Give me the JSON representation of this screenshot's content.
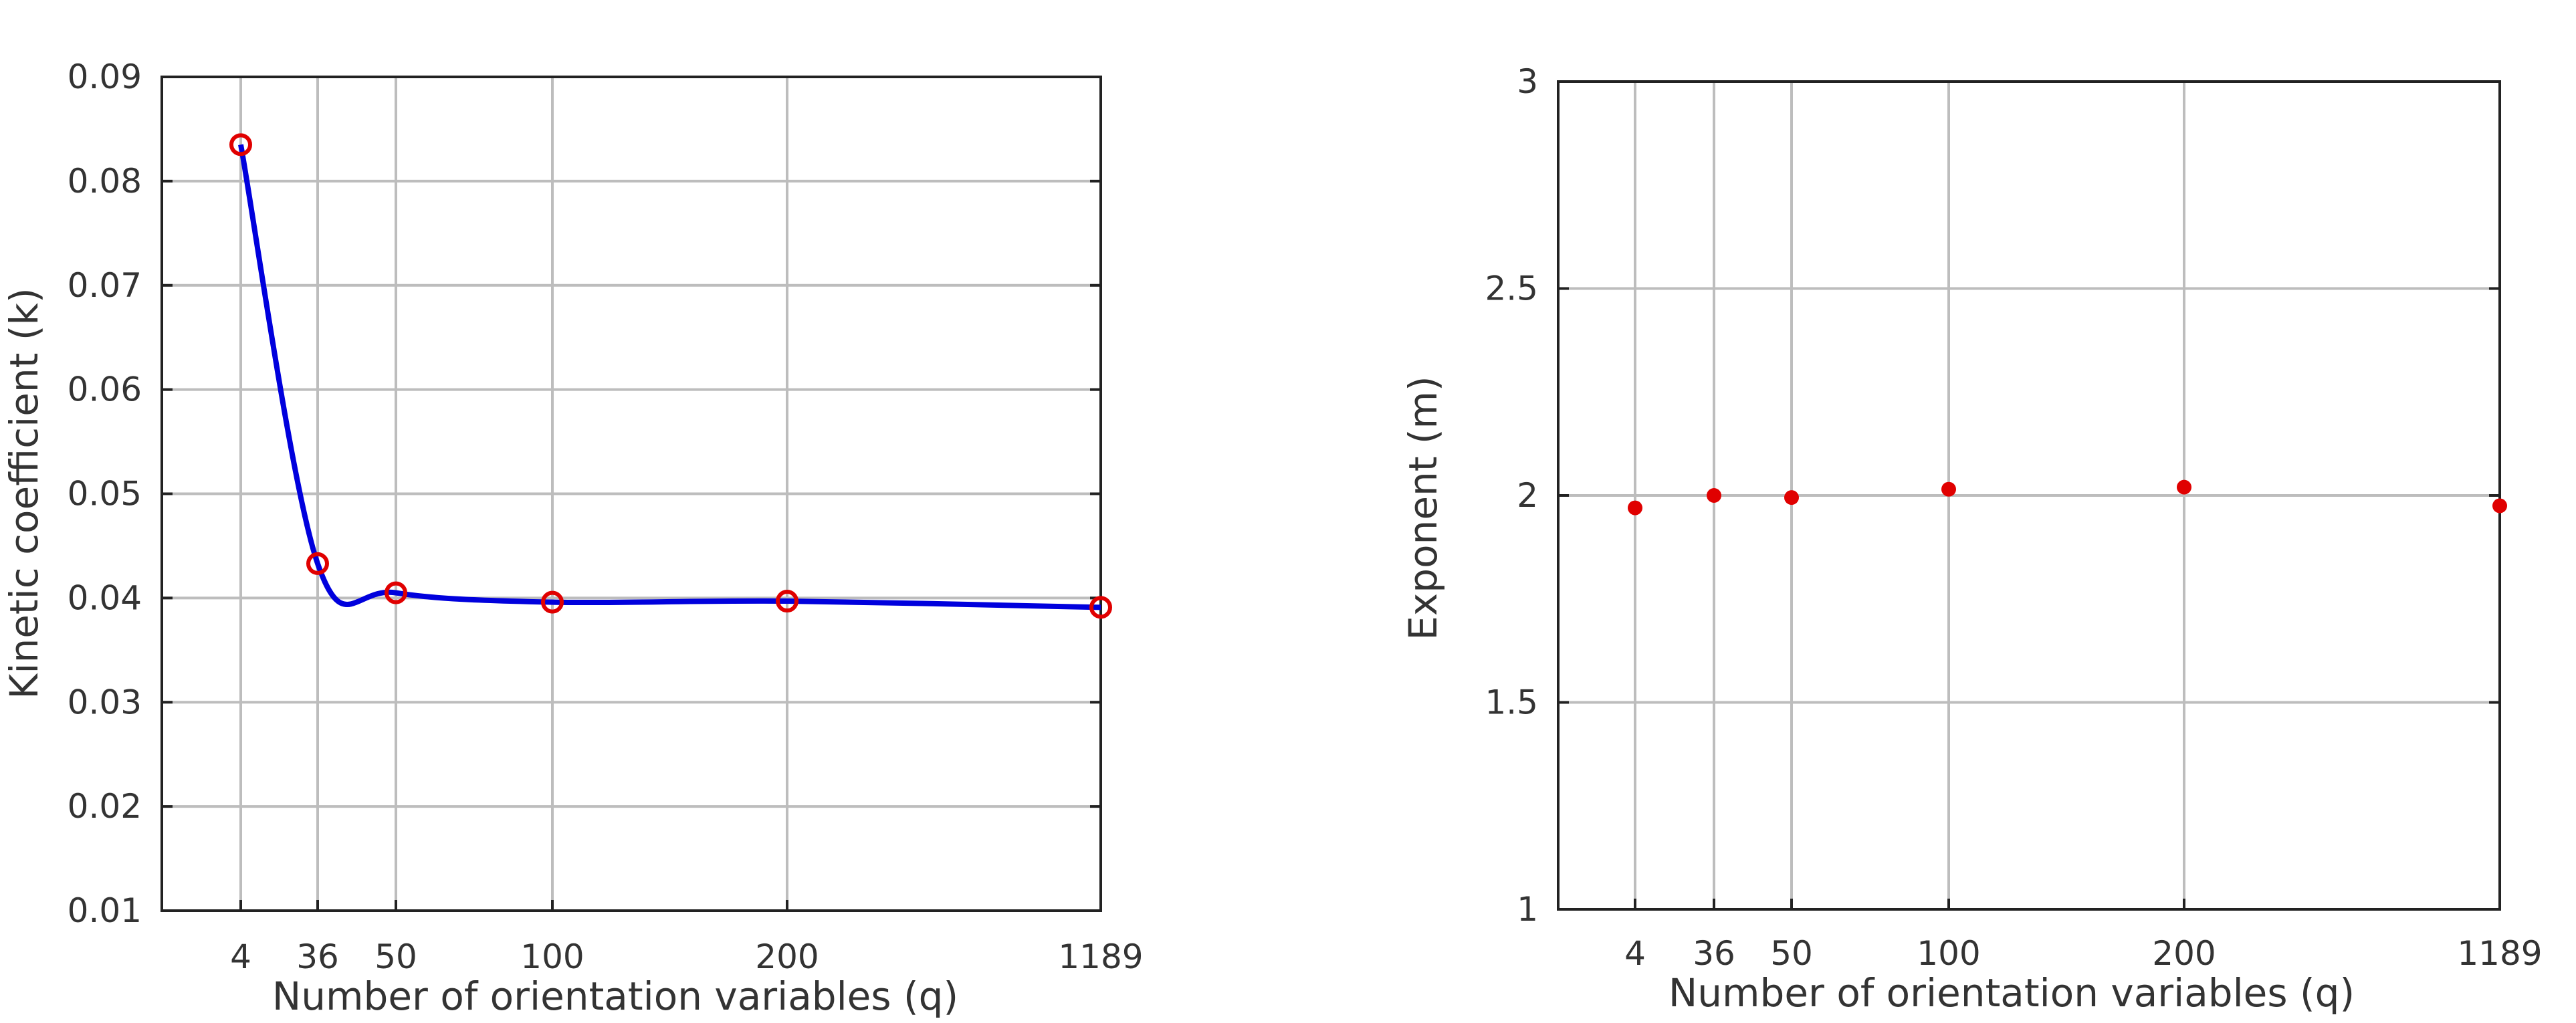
{
  "chart_data": [
    {
      "type": "line",
      "xlabel": "Number of orientation variables (q)",
      "ylabel": "Kinetic coefficient (k)",
      "x_tick_labels": [
        "4",
        "36",
        "50",
        "100",
        "200",
        "1189"
      ],
      "y_tick_labels": [
        "0.01",
        "0.02",
        "0.03",
        "0.04",
        "0.05",
        "0.06",
        "0.07",
        "0.08",
        "0.09"
      ],
      "ylim": [
        0.01,
        0.09
      ],
      "grid": true,
      "series": [
        {
          "marker": "open-circle",
          "color": "#e00000",
          "points": [
            {
              "x": "4",
              "y": 0.0835
            },
            {
              "x": "36",
              "y": 0.0433
            },
            {
              "x": "50",
              "y": 0.0405
            },
            {
              "x": "100",
              "y": 0.0396
            },
            {
              "x": "200",
              "y": 0.0397
            },
            {
              "x": "1189",
              "y": 0.0391
            }
          ]
        },
        {
          "style": "smooth-fit-line",
          "color": "#0000dd",
          "points": [
            {
              "x": "4",
              "y": 0.0835
            },
            {
              "x": "36",
              "y": 0.0433
            },
            {
              "x": "50",
              "y": 0.0405
            },
            {
              "x": "100",
              "y": 0.0396
            },
            {
              "x": "200",
              "y": 0.0397
            },
            {
              "x": "1189",
              "y": 0.0391
            }
          ]
        }
      ]
    },
    {
      "type": "scatter",
      "xlabel": "Number of orientation variables (q)",
      "ylabel": "Exponent (m)",
      "x_tick_labels": [
        "4",
        "36",
        "50",
        "100",
        "200",
        "1189"
      ],
      "y_tick_labels": [
        "1",
        "1.5",
        "2",
        "2.5",
        "3"
      ],
      "ylim": [
        1,
        3
      ],
      "grid": true,
      "series": [
        {
          "marker": "filled-dot",
          "color": "#e00000",
          "points": [
            {
              "x": "4",
              "y": 1.97
            },
            {
              "x": "36",
              "y": 2.0
            },
            {
              "x": "50",
              "y": 1.995
            },
            {
              "x": "100",
              "y": 2.015
            },
            {
              "x": "200",
              "y": 2.02
            },
            {
              "x": "1189",
              "y": 1.975
            }
          ]
        }
      ]
    }
  ]
}
